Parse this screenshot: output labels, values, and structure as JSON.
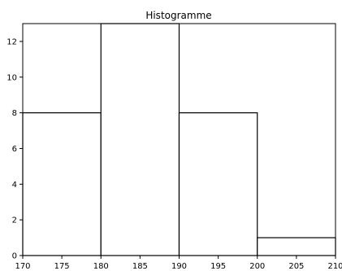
{
  "chart_data": {
    "type": "bar",
    "title": "Histogramme",
    "xlabel": "",
    "ylabel": "",
    "bins": [
      {
        "start": 170,
        "end": 180,
        "count": 8
      },
      {
        "start": 180,
        "end": 190,
        "count": 13
      },
      {
        "start": 190,
        "end": 200,
        "count": 8
      },
      {
        "start": 200,
        "end": 210,
        "count": 1
      }
    ],
    "xlim": [
      170,
      210
    ],
    "ylim": [
      0,
      13
    ],
    "xticks": [
      170,
      175,
      180,
      185,
      190,
      195,
      200,
      205,
      210
    ],
    "yticks": [
      0,
      2,
      4,
      6,
      8,
      10,
      12
    ],
    "grid": false,
    "bar_fill": "#ffffff",
    "bar_edge": "#000000"
  }
}
